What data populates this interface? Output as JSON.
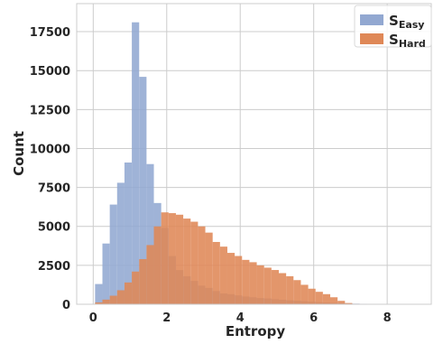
{
  "chart_data": {
    "type": "histogram",
    "xlabel": "Entropy",
    "ylabel": "Count",
    "xlim": [
      -0.45,
      9.2
    ],
    "ylim": [
      0,
      19300
    ],
    "xticks": [
      0,
      2,
      4,
      6,
      8
    ],
    "yticks": [
      0,
      2500,
      5000,
      7500,
      10000,
      12500,
      15000,
      17500
    ],
    "grid": true,
    "legend_position": "top-right",
    "bin_width": 0.2,
    "series": [
      {
        "name": "S_Easy",
        "legend_main": "S",
        "legend_sub": "Easy",
        "color": "#92a8d1",
        "bin_start": 0.05,
        "values": [
          1300,
          3900,
          6400,
          7800,
          9100,
          18100,
          14600,
          9000,
          6500,
          4900,
          3100,
          2200,
          1800,
          1500,
          1200,
          1050,
          850,
          700,
          650,
          570,
          500,
          450,
          400,
          370,
          330,
          290,
          260,
          230,
          200,
          170,
          140,
          120,
          100,
          80,
          60,
          40,
          30,
          20,
          10,
          5
        ]
      },
      {
        "name": "S_Hard",
        "legend_main": "S",
        "legend_sub": "Hard",
        "color": "#df8857",
        "bin_start": 0.05,
        "values": [
          120,
          300,
          550,
          900,
          1400,
          2100,
          2900,
          3800,
          5000,
          5900,
          5850,
          5750,
          5500,
          5300,
          5000,
          4600,
          4000,
          3700,
          3300,
          3100,
          2850,
          2700,
          2500,
          2350,
          2200,
          2000,
          1800,
          1550,
          1250,
          1000,
          800,
          650,
          450,
          220,
          80,
          30,
          10,
          5,
          0,
          0
        ]
      }
    ]
  }
}
